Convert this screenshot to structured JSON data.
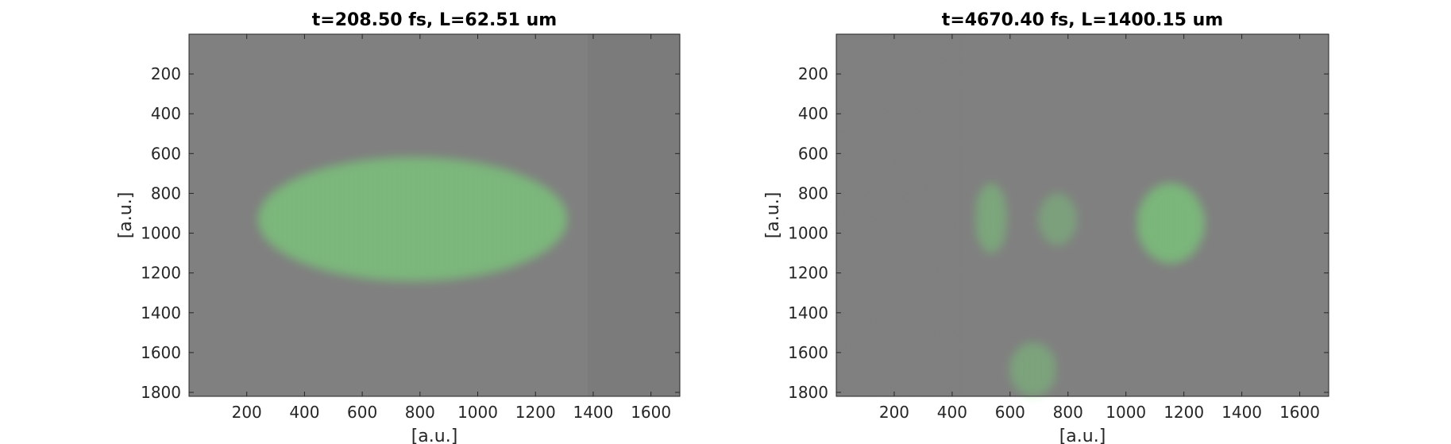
{
  "chart_data": [
    {
      "type": "heatmap",
      "title": "t=208.50 fs, L=62.51 um",
      "xlabel": "[a.u.]",
      "ylabel": "[a.u.]",
      "xlim": [
        0,
        1700
      ],
      "ylim": [
        0,
        1820
      ],
      "y_reversed": true,
      "xticks": [
        200,
        400,
        600,
        800,
        1000,
        1200,
        1400,
        1600
      ],
      "yticks": [
        200,
        400,
        600,
        800,
        1000,
        1200,
        1400,
        1600,
        1800
      ],
      "background_color": "#808080",
      "field_color": "#66ee66",
      "regions": [
        {
          "x": [
            240,
            1310
          ],
          "y": [
            620,
            1240
          ],
          "intensity": 0.85
        }
      ]
    },
    {
      "type": "heatmap",
      "title": "t=4670.40 fs, L=1400.15 um",
      "xlabel": "[a.u.]",
      "ylabel": "[a.u.]",
      "xlim": [
        0,
        1700
      ],
      "ylim": [
        0,
        1820
      ],
      "y_reversed": true,
      "xticks": [
        200,
        400,
        600,
        800,
        1000,
        1200,
        1400,
        1600
      ],
      "yticks": [
        200,
        400,
        600,
        800,
        1000,
        1200,
        1400,
        1600,
        1800
      ],
      "background_color": "#808080",
      "field_color": "#66ee66",
      "regions": [
        {
          "x": [
            480,
            590
          ],
          "y": [
            750,
            1100
          ],
          "intensity": 0.6
        },
        {
          "x": [
            700,
            830
          ],
          "y": [
            800,
            1060
          ],
          "intensity": 0.5
        },
        {
          "x": [
            1040,
            1270
          ],
          "y": [
            750,
            1150
          ],
          "intensity": 0.9
        },
        {
          "x": [
            600,
            760
          ],
          "y": [
            1550,
            1820
          ],
          "intensity": 0.55
        }
      ]
    }
  ]
}
